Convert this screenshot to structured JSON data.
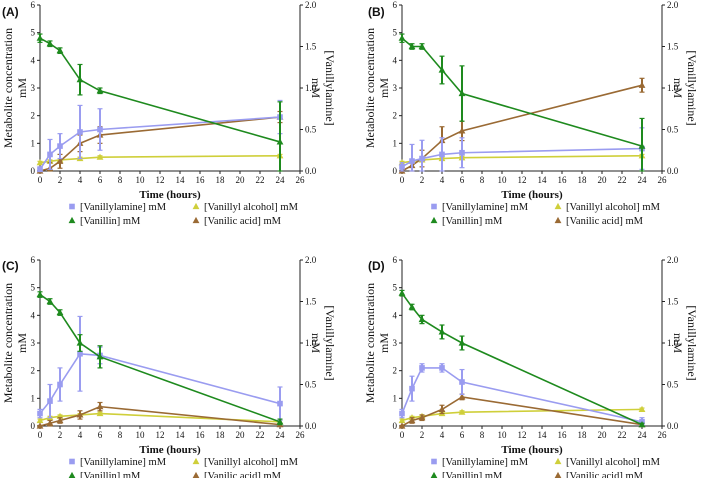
{
  "colors": {
    "vanillylamine": "#9a9cf0",
    "vanillyl_alcohol": "#cfcf3a",
    "vanillin": "#1e8a1e",
    "vanilic_acid": "#9a6a34",
    "axis": "#222222"
  },
  "chart_data": [
    {
      "type": "line",
      "panel_label": "(A)",
      "xlabel": "Time (hours)",
      "ylabel": "Metabolite concentration mM",
      "ylabel_lines": [
        "Metabolite concentration",
        "mM"
      ],
      "y2label": "[Vanillylamine] mM",
      "y2label_lines": [
        "[Vanillylamine]",
        "mM"
      ],
      "xlim": [
        0,
        26
      ],
      "ylim": [
        0,
        6
      ],
      "y2lim": [
        0,
        2.0
      ],
      "x_ticks": [
        "0",
        "2",
        "4",
        "6",
        "8",
        "10",
        "12",
        "14",
        "16",
        "18",
        "20",
        "22",
        "24",
        "26"
      ],
      "y_ticks": [
        "0",
        "1",
        "2",
        "3",
        "4",
        "5",
        "6"
      ],
      "y2_ticks": [
        "0.0",
        "0.5",
        "1.0",
        "1.5",
        "2.0"
      ],
      "x": [
        0,
        1,
        2,
        4,
        6,
        24
      ],
      "series": [
        {
          "name": "[Vanillylamine] mM",
          "key": "vanillylamine",
          "axis": "right",
          "marker": "square",
          "values": [
            0.02,
            0.2,
            0.3,
            0.47,
            0.5,
            0.65
          ],
          "errors": [
            0.03,
            0.18,
            0.15,
            0.32,
            0.25,
            0.2
          ]
        },
        {
          "name": "[Vanillyl alcohol] mM",
          "key": "vanillyl_alcohol",
          "axis": "left",
          "marker": "triangle",
          "values": [
            0.3,
            0.35,
            0.4,
            0.45,
            0.5,
            0.55
          ],
          "errors": [
            0.05,
            0.05,
            0.05,
            0.05,
            0.05,
            0.05
          ]
        },
        {
          "name": "[Vanillin] mM",
          "key": "vanillin",
          "axis": "left",
          "marker": "triangle",
          "values": [
            4.8,
            4.6,
            4.35,
            3.3,
            2.9,
            1.05
          ],
          "errors": [
            0.15,
            0.1,
            0.1,
            0.55,
            0.1,
            1.45
          ]
        },
        {
          "name": "[Vanilic acid] mM",
          "key": "vanilic_acid",
          "axis": "left",
          "marker": "triangle",
          "values": [
            0.0,
            0.1,
            0.35,
            1.0,
            1.3,
            1.95
          ],
          "errors": [
            0.02,
            0.2,
            0.25,
            0.3,
            0.3,
            0.2
          ]
        }
      ],
      "legend": [
        "[Vanillylamine] mM",
        "[Vanillyl alcohol] mM",
        "[Vanillin] mM",
        "[Vanilic acid] mM"
      ]
    },
    {
      "type": "line",
      "panel_label": "(B)",
      "xlabel": "Time (hours)",
      "ylabel": "Metabolite concentration mM",
      "ylabel_lines": [
        "Metabolite concentration",
        "mM"
      ],
      "y2label": "[Vanillylamine] mM",
      "y2label_lines": [
        "[Vanillylamine]",
        "mM"
      ],
      "xlim": [
        0,
        26
      ],
      "ylim": [
        0,
        6
      ],
      "y2lim": [
        0,
        2.0
      ],
      "x_ticks": [
        "0",
        "2",
        "4",
        "6",
        "8",
        "10",
        "12",
        "14",
        "16",
        "18",
        "20",
        "22",
        "24",
        "26"
      ],
      "y_ticks": [
        "0",
        "1",
        "2",
        "3",
        "4",
        "5",
        "6"
      ],
      "y2_ticks": [
        "0.0",
        "0.5",
        "1.0",
        "1.5",
        "2.0"
      ],
      "x": [
        0,
        1,
        2,
        4,
        6,
        24
      ],
      "series": [
        {
          "name": "[Vanillylamine] mM",
          "key": "vanillylamine",
          "axis": "right",
          "marker": "square",
          "values": [
            0.05,
            0.12,
            0.15,
            0.2,
            0.22,
            0.27
          ],
          "errors": [
            0.05,
            0.2,
            0.22,
            0.2,
            0.18,
            0.25
          ]
        },
        {
          "name": "[Vanillyl alcohol] mM",
          "key": "vanillyl_alcohol",
          "axis": "left",
          "marker": "triangle",
          "values": [
            0.3,
            0.35,
            0.4,
            0.45,
            0.48,
            0.55
          ],
          "errors": [
            0.05,
            0.05,
            0.05,
            0.05,
            0.05,
            0.05
          ]
        },
        {
          "name": "[Vanillin] mM",
          "key": "vanillin",
          "axis": "left",
          "marker": "triangle",
          "values": [
            4.8,
            4.5,
            4.5,
            3.65,
            2.8,
            0.9
          ],
          "errors": [
            0.15,
            0.1,
            0.1,
            0.5,
            1.0,
            1.0
          ]
        },
        {
          "name": "[Vanilic acid] mM",
          "key": "vanilic_acid",
          "axis": "left",
          "marker": "triangle",
          "values": [
            0.0,
            0.2,
            0.45,
            1.1,
            1.45,
            3.1
          ],
          "errors": [
            0.02,
            0.2,
            0.3,
            0.5,
            0.35,
            0.25
          ]
        }
      ],
      "legend": [
        "[Vanillylamine] mM",
        "[Vanillyl alcohol] mM",
        "[Vanillin] mM",
        "[Vanilic acid] mM"
      ]
    },
    {
      "type": "line",
      "panel_label": "(C)",
      "xlabel": "Time (hours)",
      "ylabel": "Metabolite concentration mM",
      "ylabel_lines": [
        "Metabolite concentration",
        "mM"
      ],
      "y2label": "[Vanillylamine] mM",
      "y2label_lines": [
        "[Vanillylamine]",
        "mM"
      ],
      "xlim": [
        0,
        26
      ],
      "ylim": [
        0,
        6
      ],
      "y2lim": [
        0,
        2.0
      ],
      "x_ticks": [
        "0",
        "2",
        "4",
        "6",
        "8",
        "10",
        "12",
        "14",
        "16",
        "18",
        "20",
        "22",
        "24",
        "26"
      ],
      "y_ticks": [
        "0",
        "1",
        "2",
        "3",
        "4",
        "5",
        "6"
      ],
      "y2_ticks": [
        "0.0",
        "0.5",
        "1.0",
        "1.5",
        "2.0"
      ],
      "x": [
        0,
        1,
        2,
        4,
        6,
        24
      ],
      "series": [
        {
          "name": "[Vanillylamine] mM",
          "key": "vanillylamine",
          "axis": "right",
          "marker": "square",
          "values": [
            0.15,
            0.3,
            0.5,
            0.87,
            0.85,
            0.27
          ],
          "errors": [
            0.05,
            0.2,
            0.2,
            0.45,
            0.1,
            0.2
          ]
        },
        {
          "name": "[Vanillyl alcohol] mM",
          "key": "vanillyl_alcohol",
          "axis": "left",
          "marker": "triangle",
          "values": [
            0.2,
            0.3,
            0.35,
            0.4,
            0.45,
            0.15
          ],
          "errors": [
            0.05,
            0.05,
            0.05,
            0.05,
            0.05,
            0.05
          ]
        },
        {
          "name": "[Vanillin] mM",
          "key": "vanillin",
          "axis": "left",
          "marker": "triangle",
          "values": [
            4.75,
            4.5,
            4.1,
            3.0,
            2.5,
            0.15
          ],
          "errors": [
            0.1,
            0.1,
            0.1,
            0.3,
            0.4,
            0.1
          ]
        },
        {
          "name": "[Vanilic acid] mM",
          "key": "vanilic_acid",
          "axis": "left",
          "marker": "triangle",
          "values": [
            0.0,
            0.1,
            0.2,
            0.4,
            0.7,
            0.05
          ],
          "errors": [
            0.02,
            0.1,
            0.1,
            0.15,
            0.15,
            0.05
          ]
        }
      ],
      "legend": [
        "[Vanillylamine] mM",
        "[Vanillyl alcohol] mM",
        "[Vanillin] mM",
        "[Vanilic acid] mM"
      ]
    },
    {
      "type": "line",
      "panel_label": "(D)",
      "xlabel": "Time (hours)",
      "ylabel": "Metabolite concentration mM",
      "ylabel_lines": [
        "Metabolite concentration",
        "mM"
      ],
      "y2label": "[Vanillylamine] mM",
      "y2label_lines": [
        "[Vanillylamine]",
        "mM"
      ],
      "xlim": [
        0,
        26
      ],
      "ylim": [
        0,
        6
      ],
      "y2lim": [
        0,
        2.0
      ],
      "x_ticks": [
        "0",
        "2",
        "4",
        "6",
        "8",
        "10",
        "12",
        "14",
        "16",
        "18",
        "20",
        "22",
        "24",
        "26"
      ],
      "y_ticks": [
        "0",
        "1",
        "2",
        "3",
        "4",
        "5",
        "6"
      ],
      "y2_ticks": [
        "0.0",
        "0.5",
        "1.0",
        "1.5",
        "2.0"
      ],
      "x": [
        0,
        1,
        2,
        4,
        6,
        24
      ],
      "series": [
        {
          "name": "[Vanillylamine] mM",
          "key": "vanillylamine",
          "axis": "right",
          "marker": "square",
          "values": [
            0.15,
            0.45,
            0.7,
            0.7,
            0.53,
            0.05
          ],
          "errors": [
            0.05,
            0.15,
            0.05,
            0.05,
            0.15,
            0.05
          ]
        },
        {
          "name": "[Vanillyl alcohol] mM",
          "key": "vanillyl_alcohol",
          "axis": "left",
          "marker": "triangle",
          "values": [
            0.2,
            0.3,
            0.35,
            0.45,
            0.5,
            0.6
          ],
          "errors": [
            0.05,
            0.05,
            0.05,
            0.05,
            0.05,
            0.05
          ]
        },
        {
          "name": "[Vanillin] mM",
          "key": "vanillin",
          "axis": "left",
          "marker": "triangle",
          "values": [
            4.8,
            4.3,
            3.85,
            3.4,
            3.0,
            0.05
          ],
          "errors": [
            0.1,
            0.1,
            0.15,
            0.25,
            0.25,
            0.05
          ]
        },
        {
          "name": "[Vanilic acid] mM",
          "key": "vanilic_acid",
          "axis": "left",
          "marker": "triangle",
          "values": [
            0.0,
            0.2,
            0.3,
            0.6,
            1.05,
            0.05
          ],
          "errors": [
            0.02,
            0.1,
            0.1,
            0.15,
            0.1,
            0.05
          ]
        }
      ],
      "legend": [
        "[Vanillylamine] mM",
        "[Vanillyl alcohol] mM",
        "[Vanillin] mM",
        "[Vanilic acid] mM"
      ]
    }
  ]
}
